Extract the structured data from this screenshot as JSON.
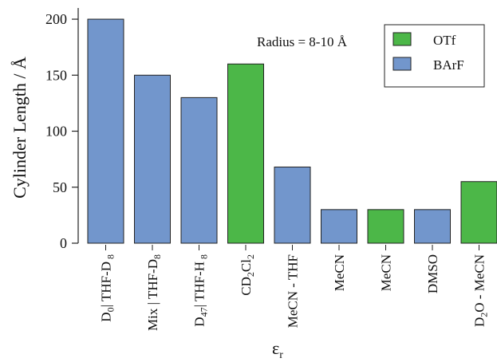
{
  "chart_data": {
    "type": "bar",
    "ylabel": "Cylinder Length / Å",
    "xlabel_main": "ε",
    "xlabel_sub": "r",
    "ylim": [
      0,
      210
    ],
    "yticks": [
      "0",
      "50",
      "100",
      "150",
      "200"
    ],
    "annotation": "Radius = 8-10 Å",
    "legend": [
      {
        "name": "OTf",
        "color": "#4cb748"
      },
      {
        "name": "BArF",
        "color": "#7296cc"
      }
    ],
    "legend_position": "top-right",
    "bars": [
      {
        "label": "D0| THF-D 8",
        "parts": [
          {
            "t": "D"
          },
          {
            "t": "0",
            "sub": true
          },
          {
            "t": "| THF-D"
          },
          {
            "t": " 8",
            "sub": true
          }
        ],
        "value": 200,
        "series": "BArF"
      },
      {
        "label": "Mix | THF-D8",
        "parts": [
          {
            "t": "Mix | THF-D"
          },
          {
            "t": "8",
            "sub": true
          }
        ],
        "value": 150,
        "series": "BArF"
      },
      {
        "label": "D47| THF-H 8",
        "parts": [
          {
            "t": "D"
          },
          {
            "t": "47",
            "sub": true
          },
          {
            "t": "| THF-H"
          },
          {
            "t": " 8",
            "sub": true
          }
        ],
        "value": 130,
        "series": "BArF"
      },
      {
        "label": "CD2Cl2",
        "parts": [
          {
            "t": "CD"
          },
          {
            "t": "2",
            "sub": true
          },
          {
            "t": "Cl"
          },
          {
            "t": "2",
            "sub": true
          }
        ],
        "value": 160,
        "series": "OTf"
      },
      {
        "label": "MeCN - THF",
        "parts": [
          {
            "t": "MeCN - THF"
          }
        ],
        "value": 68,
        "series": "BArF"
      },
      {
        "label": "MeCN",
        "parts": [
          {
            "t": "MeCN"
          }
        ],
        "value": 30,
        "series": "BArF"
      },
      {
        "label": "MeCN",
        "parts": [
          {
            "t": "MeCN"
          }
        ],
        "value": 30,
        "series": "OTf"
      },
      {
        "label": "DMSO",
        "parts": [
          {
            "t": "DMSO"
          }
        ],
        "value": 30,
        "series": "BArF"
      },
      {
        "label": "D2O - MeCN",
        "parts": [
          {
            "t": "D"
          },
          {
            "t": "2",
            "sub": true
          },
          {
            "t": "O - MeCN"
          }
        ],
        "value": 55,
        "series": "OTf"
      }
    ]
  }
}
